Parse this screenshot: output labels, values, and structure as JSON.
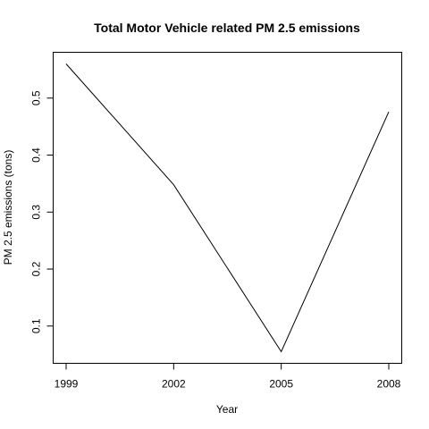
{
  "chart_data": {
    "type": "line",
    "title": "Total Motor Vehicle related PM 2.5 emissions",
    "xlabel": "Year",
    "ylabel": "PM 2.5 emissions (tons)",
    "x": [
      1999,
      2002,
      2005,
      2008
    ],
    "series": [
      {
        "values": [
          0.56,
          0.348,
          0.055,
          0.476
        ],
        "color": "#000000"
      }
    ],
    "xticks": [
      "1999",
      "2002",
      "2005",
      "2008"
    ],
    "yticks": [
      "0.1",
      "0.2",
      "0.3",
      "0.4",
      "0.5"
    ],
    "xlim": [
      1999,
      2008
    ],
    "ylim": [
      0.055,
      0.56
    ],
    "grid": false,
    "box": true
  }
}
